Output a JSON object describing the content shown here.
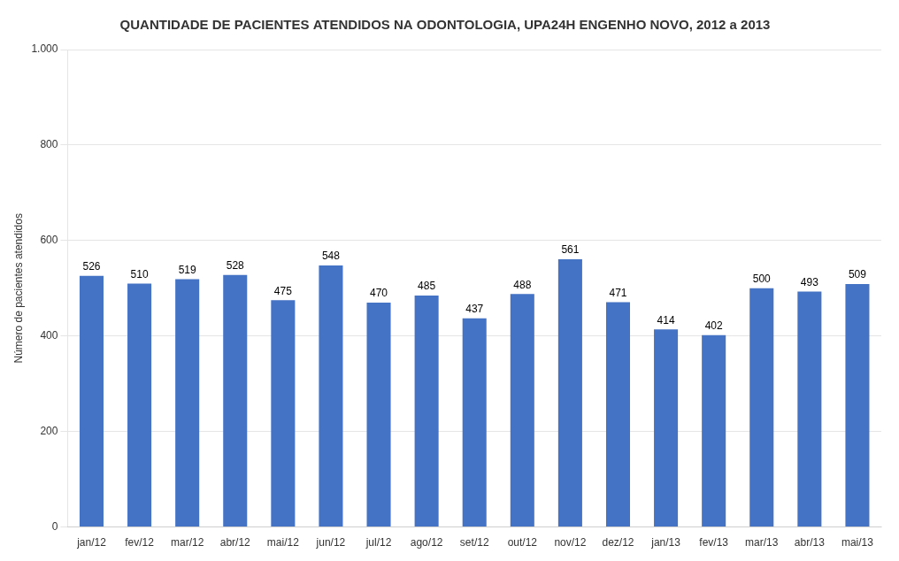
{
  "chart_data": {
    "type": "bar",
    "title": "QUANTIDADE DE PACIENTES ATENDIDOS NA ODONTOLOGIA, UPA24H ENGENHO NOVO, 2012 a 2013",
    "ylabel": "Número de pacientes atendidos",
    "categories": [
      "jan/12",
      "fev/12",
      "mar/12",
      "abr/12",
      "mai/12",
      "jun/12",
      "jul/12",
      "ago/12",
      "set/12",
      "out/12",
      "nov/12",
      "dez/12",
      "jan/13",
      "fev/13",
      "mar/13",
      "abr/13",
      "mai/13"
    ],
    "values": [
      526,
      510,
      519,
      528,
      475,
      548,
      470,
      485,
      437,
      488,
      561,
      471,
      414,
      402,
      500,
      493,
      509
    ],
    "color": "#4472C4",
    "ylim": [
      0,
      1000
    ],
    "yticks": [
      0,
      200,
      400,
      600,
      800,
      {
        "value": 1000,
        "label": "1.000"
      }
    ],
    "grid": true,
    "data_labels": true
  }
}
